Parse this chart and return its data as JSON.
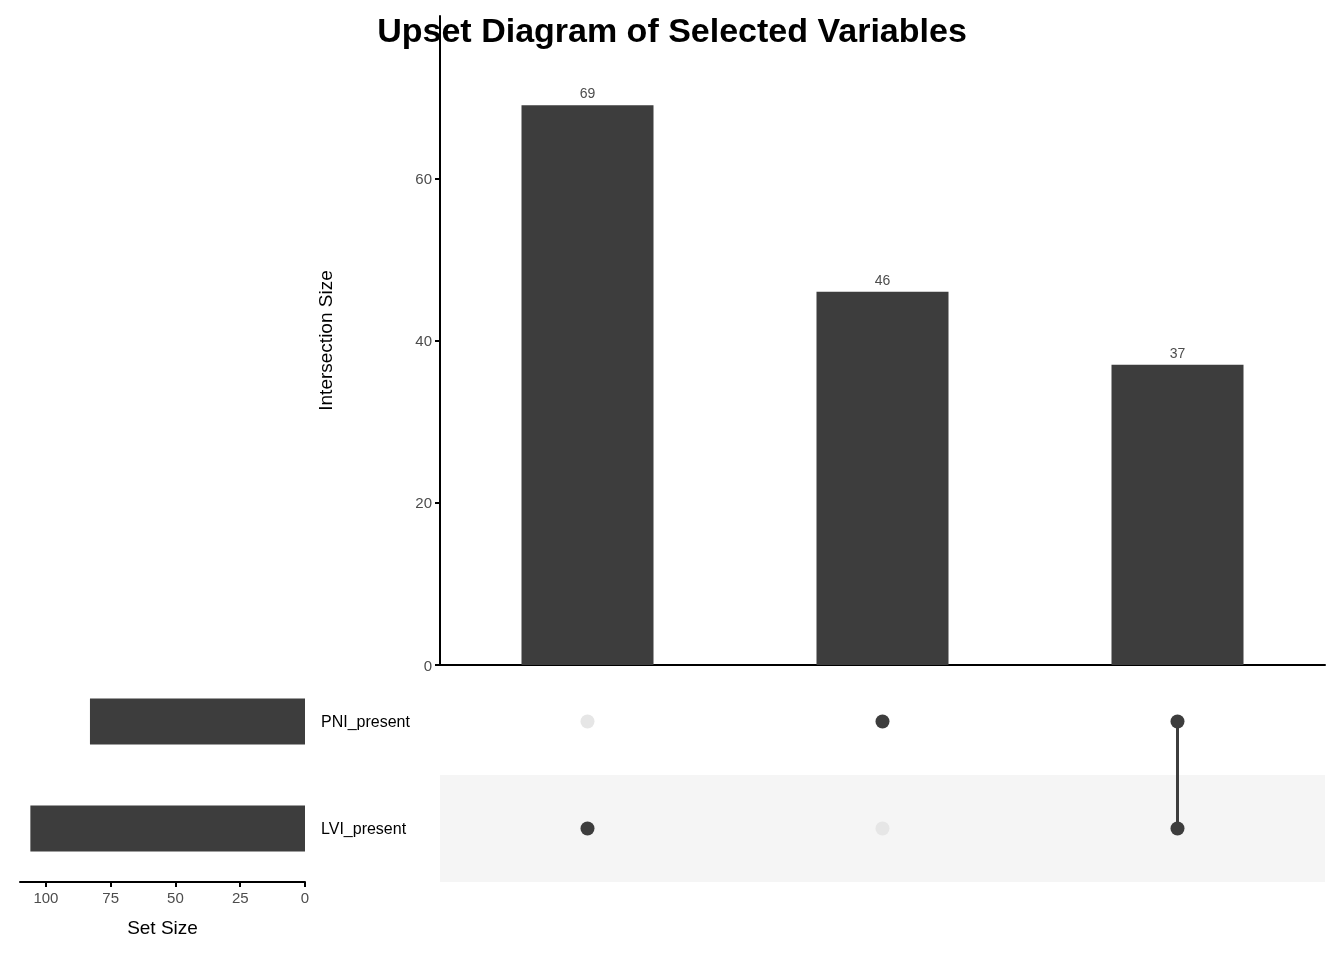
{
  "chart_data": [
    {
      "type": "bar",
      "title": "Upset Diagram of Selected Variables",
      "ylabel": "Intersection Size",
      "categories": [
        null,
        null,
        null
      ],
      "values": [
        69,
        46,
        37
      ],
      "color": "#3d3d3d",
      "ylim": [
        0,
        80
      ],
      "yticks": [
        0,
        20,
        40,
        60
      ],
      "data_labels": true,
      "tick_labels": "y"
    },
    {
      "type": "bar",
      "orientation": "horizontal",
      "xlabel": "Set Size",
      "categories": [
        "PNI_present",
        "LVI_present"
      ],
      "values": [
        83,
        106
      ],
      "color": "#3d3d3d",
      "xlim": [
        110,
        0
      ],
      "xticks": [
        100,
        75,
        50,
        25,
        0
      ]
    }
  ]
}
